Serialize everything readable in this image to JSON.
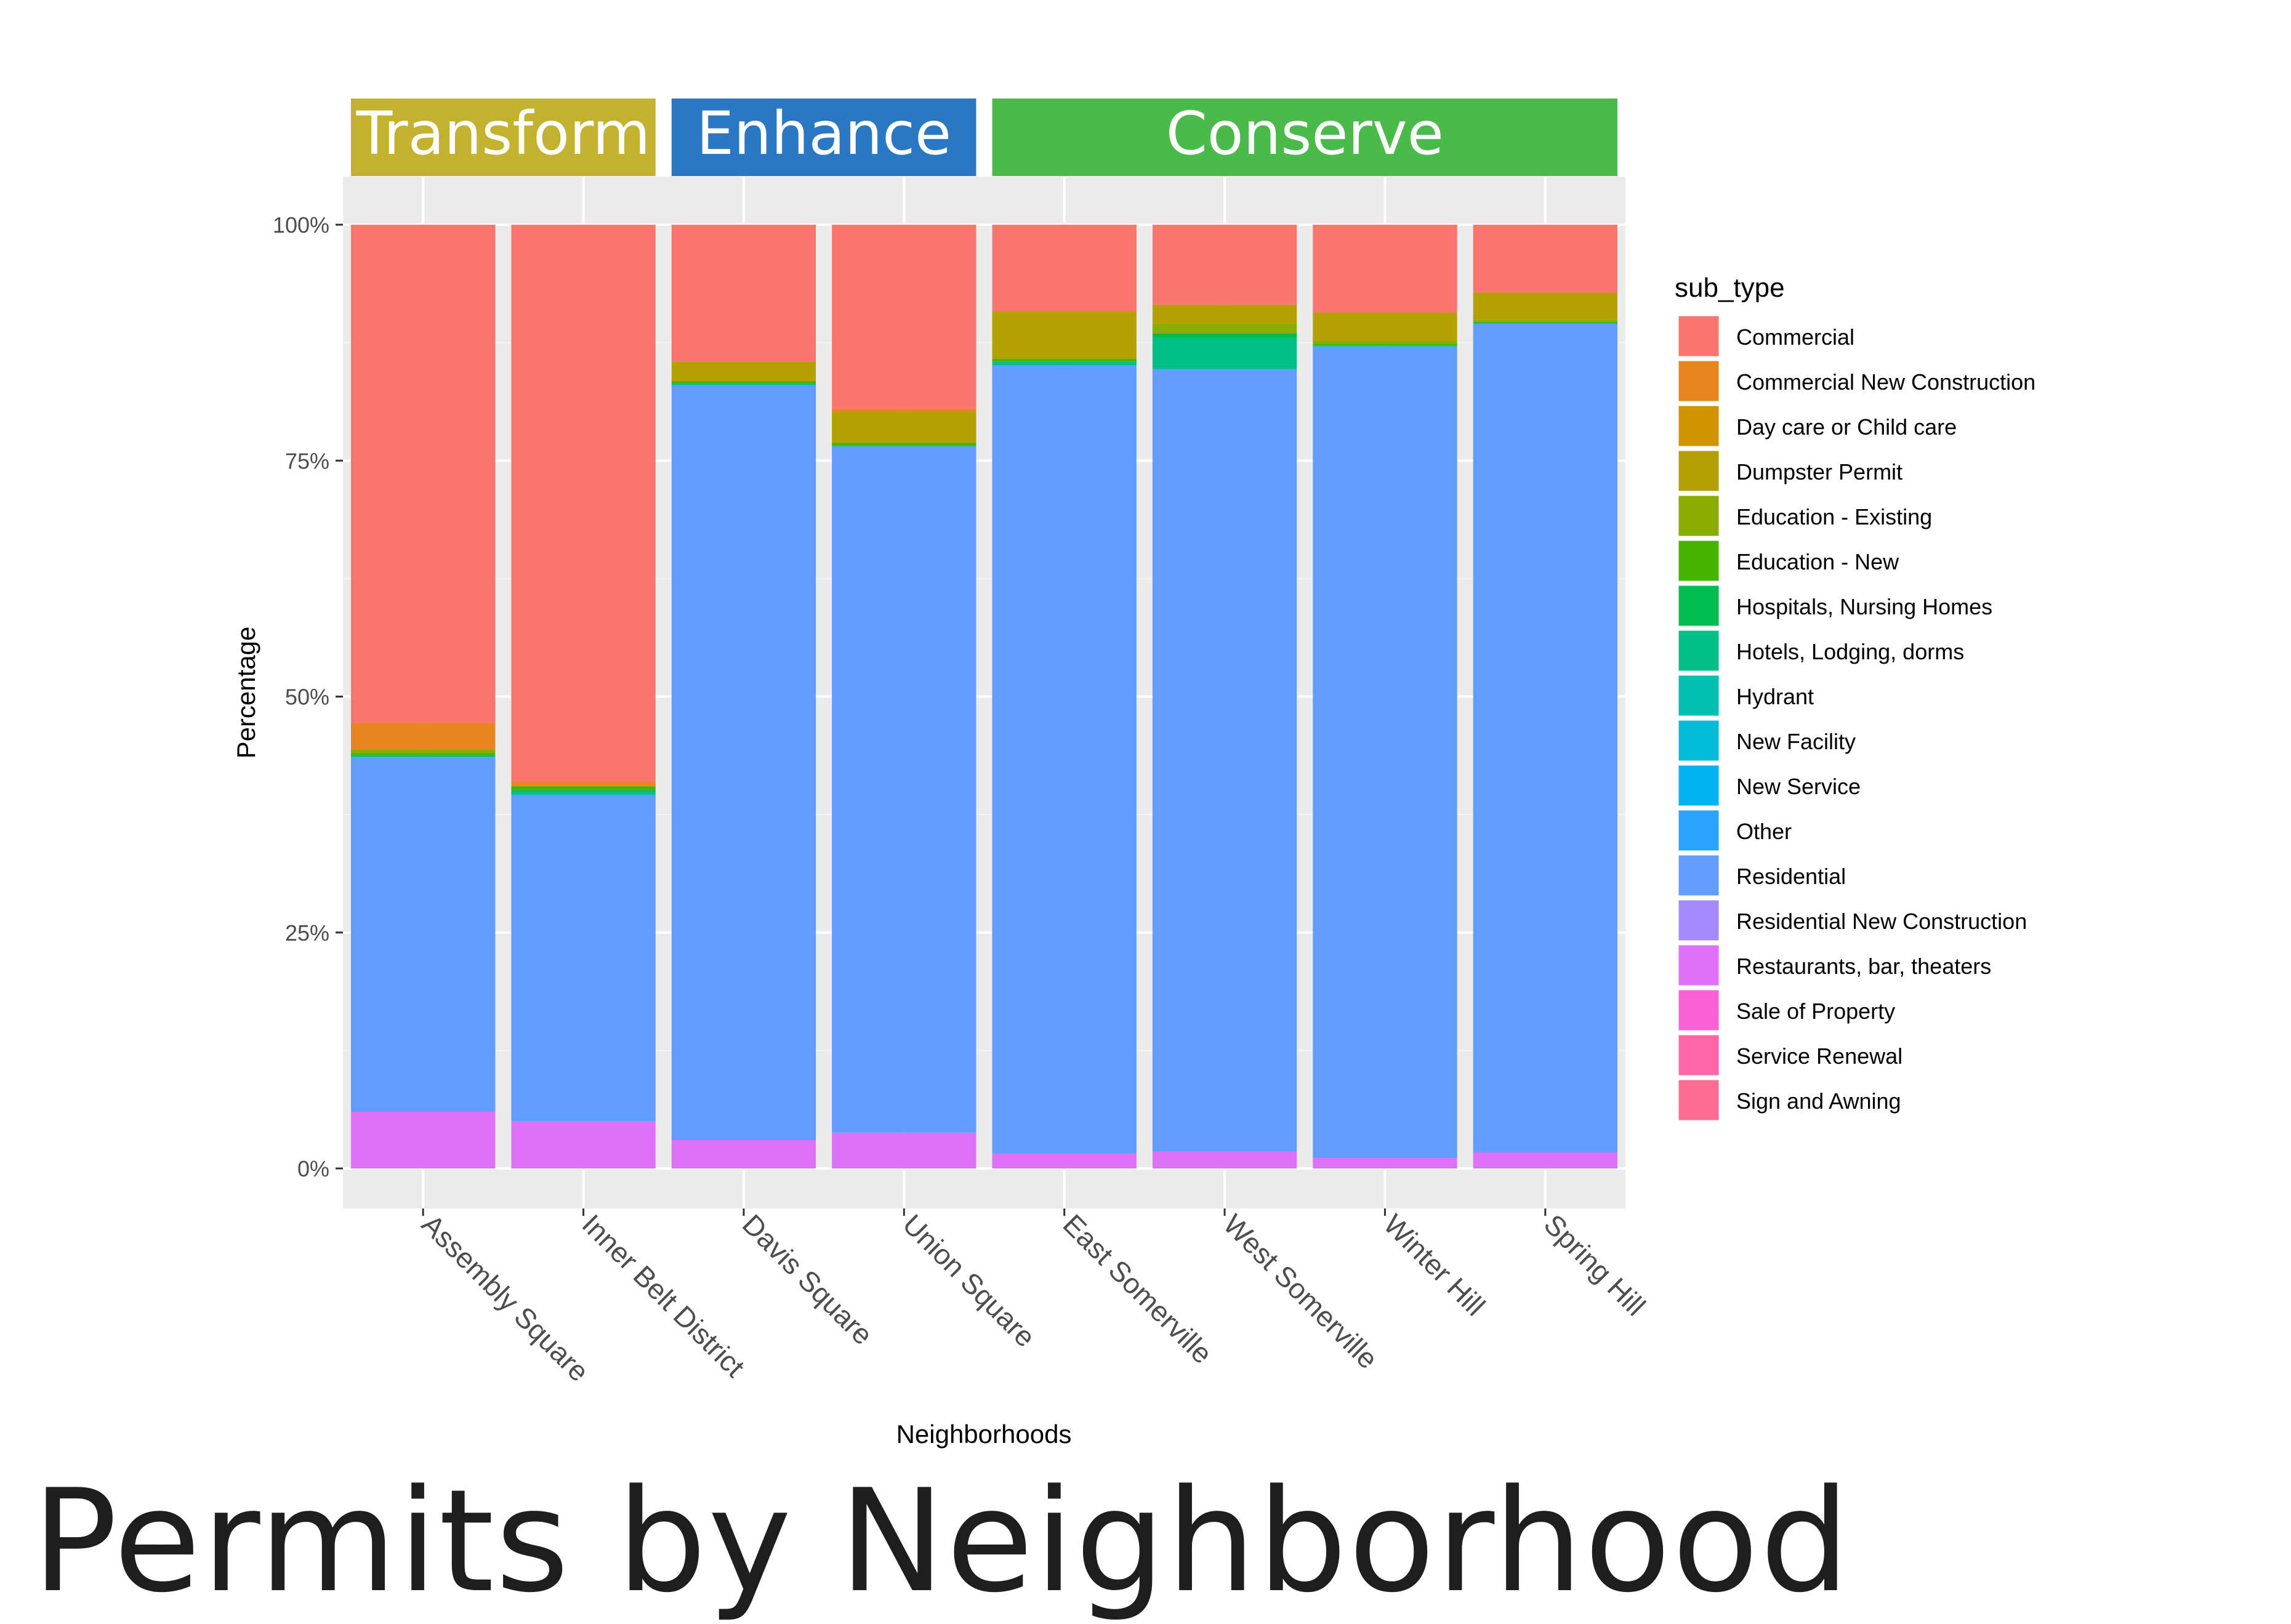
{
  "page": {
    "title": "Permits by Neighborhood"
  },
  "chart_data": {
    "type": "bar",
    "stacked": true,
    "normalized": true,
    "xlabel": "Neighborhoods",
    "ylabel": "Percentage",
    "ylim": [
      0,
      100
    ],
    "y_ticks": [
      "0%",
      "25%",
      "50%",
      "75%",
      "100%"
    ],
    "y_tick_values": [
      0,
      25,
      50,
      75,
      100
    ],
    "grid": true,
    "legend_position": "right",
    "legend_title": "sub_type",
    "categories": [
      "Assembly Square",
      "Inner Belt District",
      "Davis Square",
      "Union Square",
      "East Somerville",
      "West Somerville",
      "Winter Hill",
      "Spring Hill"
    ],
    "groups": [
      {
        "label": "Transform",
        "color": "#c4b22e",
        "categories": [
          "Assembly Square",
          "Inner Belt District"
        ]
      },
      {
        "label": "Enhance",
        "color": "#2a78c4",
        "categories": [
          "Davis Square",
          "Union Square"
        ]
      },
      {
        "label": "Conserve",
        "color": "#4aba4a",
        "categories": [
          "East Somerville",
          "West Somerville",
          "Winter Hill",
          "Spring Hill"
        ]
      }
    ],
    "series": [
      {
        "name": "Commercial",
        "color": "#F8766D",
        "values": [
          52.8,
          59.0,
          14.5,
          19.5,
          9.2,
          8.5,
          9.3,
          7.2
        ]
      },
      {
        "name": "Commercial New Construction",
        "color": "#E7851E",
        "values": [
          2.8,
          0.5,
          0,
          0.3,
          0,
          0,
          0,
          0
        ]
      },
      {
        "name": "Day care or Child care",
        "color": "#D09400",
        "values": [
          0,
          0,
          0,
          0,
          0,
          0,
          0,
          0
        ]
      },
      {
        "name": "Dumpster Permit",
        "color": "#B2A100",
        "values": [
          0,
          0,
          2.1,
          3.3,
          5.0,
          2.0,
          3.0,
          2.9
        ]
      },
      {
        "name": "Education - Existing",
        "color": "#89AC00",
        "values": [
          0.4,
          0,
          0,
          0,
          0,
          1.0,
          0.3,
          0.2
        ]
      },
      {
        "name": "Education - New",
        "color": "#45B500",
        "values": [
          0.2,
          0.4,
          0.2,
          0.3,
          0.3,
          0,
          0.2,
          0.1
        ]
      },
      {
        "name": "Hospitals, Nursing Homes",
        "color": "#00BC51",
        "values": [
          0,
          0.2,
          0,
          0,
          0,
          0.5,
          0,
          0
        ]
      },
      {
        "name": "Hotels, Lodging, dorms",
        "color": "#00C087",
        "values": [
          0.2,
          0.3,
          0.2,
          0.1,
          0.4,
          3.3,
          0.1,
          0.1
        ]
      },
      {
        "name": "Hydrant",
        "color": "#00C0B2",
        "values": [
          0,
          0,
          0,
          0,
          0,
          0,
          0,
          0
        ]
      },
      {
        "name": "New Facility",
        "color": "#00BCD6",
        "values": [
          0,
          0,
          0,
          0,
          0,
          0,
          0,
          0
        ]
      },
      {
        "name": "New Service",
        "color": "#00B3F2",
        "values": [
          0,
          0,
          0,
          0,
          0,
          0,
          0,
          0
        ]
      },
      {
        "name": "Other",
        "color": "#29A3FF",
        "values": [
          0,
          0,
          0,
          0,
          0,
          0,
          0,
          0
        ]
      },
      {
        "name": "Residential",
        "color": "#619CFF",
        "values": [
          37.6,
          34.6,
          80.0,
          72.7,
          83.5,
          82.9,
          86.0,
          87.8
        ]
      },
      {
        "name": "Residential New Construction",
        "color": "#A58AFF",
        "values": [
          0,
          0,
          0,
          0,
          0,
          0,
          0,
          0
        ]
      },
      {
        "name": "Restaurants, bar, theaters",
        "color": "#DF70F8",
        "values": [
          6.0,
          5.0,
          3.0,
          3.8,
          1.6,
          1.8,
          1.1,
          1.7
        ]
      },
      {
        "name": "Sale of Property",
        "color": "#FB61D7",
        "values": [
          0,
          0,
          0,
          0,
          0,
          0,
          0,
          0
        ]
      },
      {
        "name": "Service Renewal",
        "color": "#FF66A8",
        "values": [
          0,
          0,
          0,
          0,
          0,
          0,
          0,
          0
        ]
      },
      {
        "name": "Sign and Awning",
        "color": "#FF6C91",
        "values": [
          0,
          0,
          0,
          0,
          0,
          0,
          0,
          0
        ]
      }
    ]
  }
}
